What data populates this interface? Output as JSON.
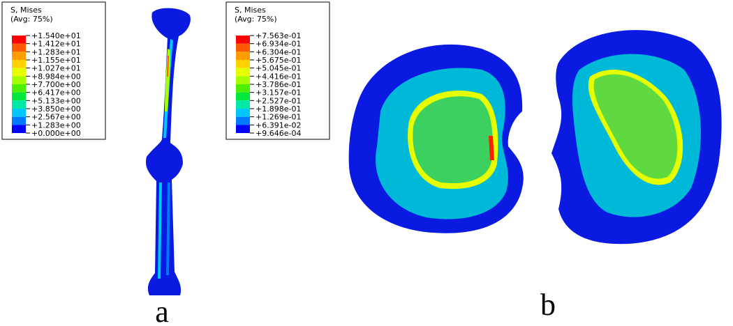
{
  "legends": [
    {
      "title": "S, Mises",
      "subtitle": "(Avg: 75%)",
      "labels": [
        "+1.540e+01",
        "+1.412e+01",
        "+1.283e+01",
        "+1.155e+01",
        "+1.027e+01",
        "+8.984e+00",
        "+7.700e+00",
        "+6.417e+00",
        "+5.133e+00",
        "+3.850e+00",
        "+2.567e+00",
        "+1.283e+00",
        "+0.000e+00"
      ]
    },
    {
      "title": "S, Mises",
      "subtitle": "(Avg: 75%)",
      "labels": [
        "+7.563e-01",
        "+6.934e-01",
        "+6.304e-01",
        "+5.675e-01",
        "+5.045e-01",
        "+4.416e-01",
        "+3.786e-01",
        "+3.157e-01",
        "+2.527e-01",
        "+1.898e-01",
        "+1.269e-01",
        "+6.391e-02",
        "+9.646e-04"
      ]
    }
  ],
  "legend_colors": [
    "#ff0000",
    "#ff5a00",
    "#ff9e00",
    "#ffd200",
    "#e6ff00",
    "#a6ff00",
    "#4cf000",
    "#00e83c",
    "#00e8a8",
    "#00c8ff",
    "#0078ff",
    "#0000ff"
  ],
  "panel_labels": [
    "a",
    "b"
  ]
}
